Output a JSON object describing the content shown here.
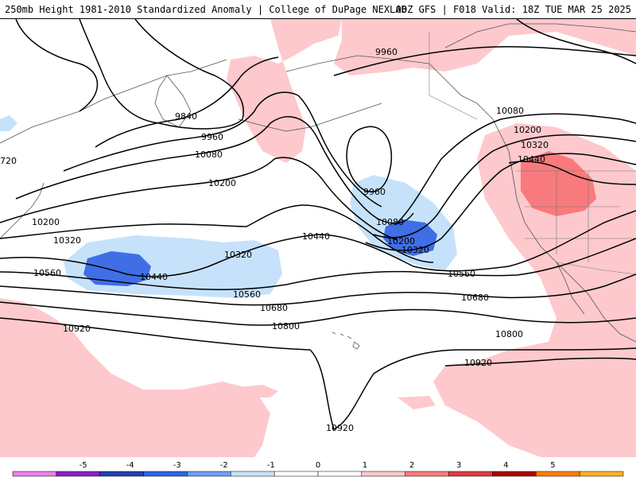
{
  "header": {
    "title": "250mb Height 1981-2010 Standardized Anomaly | College of DuPage NEXLAB",
    "valid": "00Z GFS | F018 Valid: 18Z TUE MAR 25 2025"
  },
  "contours": {
    "labels": [
      {
        "text": "9960",
        "name": "contour-label-9960-north"
      },
      {
        "text": "9840",
        "name": "contour-label-9840"
      },
      {
        "text": "9960",
        "name": "contour-label-9960-west"
      },
      {
        "text": "10080",
        "name": "contour-label-10080-west"
      },
      {
        "text": "10200",
        "name": "contour-label-10200-west"
      },
      {
        "text": "720",
        "name": "contour-label-720-edge"
      },
      {
        "text": "10200",
        "name": "contour-label-10200-far-west"
      },
      {
        "text": "10320",
        "name": "contour-label-10320-far-west"
      },
      {
        "text": "10560",
        "name": "contour-label-10560-far-west"
      },
      {
        "text": "10440",
        "name": "contour-label-10440-west"
      },
      {
        "text": "10320",
        "name": "contour-label-10320-mid"
      },
      {
        "text": "10440",
        "name": "contour-label-10440-mid"
      },
      {
        "text": "10560",
        "name": "contour-label-10560-mid"
      },
      {
        "text": "10680",
        "name": "contour-label-10680-mid"
      },
      {
        "text": "10800",
        "name": "contour-label-10800-mid"
      },
      {
        "text": "10920",
        "name": "contour-label-10920-west"
      },
      {
        "text": "9960",
        "name": "contour-label-9960-low"
      },
      {
        "text": "10080",
        "name": "contour-label-10080-low"
      },
      {
        "text": "10200",
        "name": "contour-label-10200-low"
      },
      {
        "text": "10320",
        "name": "contour-label-10320-low"
      },
      {
        "text": "10560",
        "name": "contour-label-10560-east"
      },
      {
        "text": "10680",
        "name": "contour-label-10680-east"
      },
      {
        "text": "10800",
        "name": "contour-label-10800-east"
      },
      {
        "text": "10920",
        "name": "contour-label-10920-east"
      },
      {
        "text": "10920",
        "name": "contour-label-10920-south"
      },
      {
        "text": "10080",
        "name": "contour-label-10080-coast"
      },
      {
        "text": "10200",
        "name": "contour-label-10200-coast"
      },
      {
        "text": "10320",
        "name": "contour-label-10320-coast"
      },
      {
        "text": "10440",
        "name": "contour-label-10440-coast"
      }
    ]
  },
  "colorbar": {
    "ticks": [
      "-5",
      "-4",
      "-3",
      "-2",
      "-1",
      "0",
      "1",
      "2",
      "3",
      "4",
      "5"
    ],
    "colors": [
      "#ee7ee8",
      "#8c1ec8",
      "#1e3fb4",
      "#2e64e6",
      "#6a9ef2",
      "#c6e2fb",
      "#ffffff",
      "#ffffff",
      "#fcc6c8",
      "#f87a7c",
      "#e23a3c",
      "#b00000",
      "#ff7d00",
      "#ffb31e"
    ],
    "colors_note": ""
  },
  "colors": {
    "pos1": "#fdc9cc",
    "pos2": "#f87a7c",
    "neg1": "#c6e2fb",
    "neg2": "#3f6ee6",
    "line": "#000000"
  }
}
